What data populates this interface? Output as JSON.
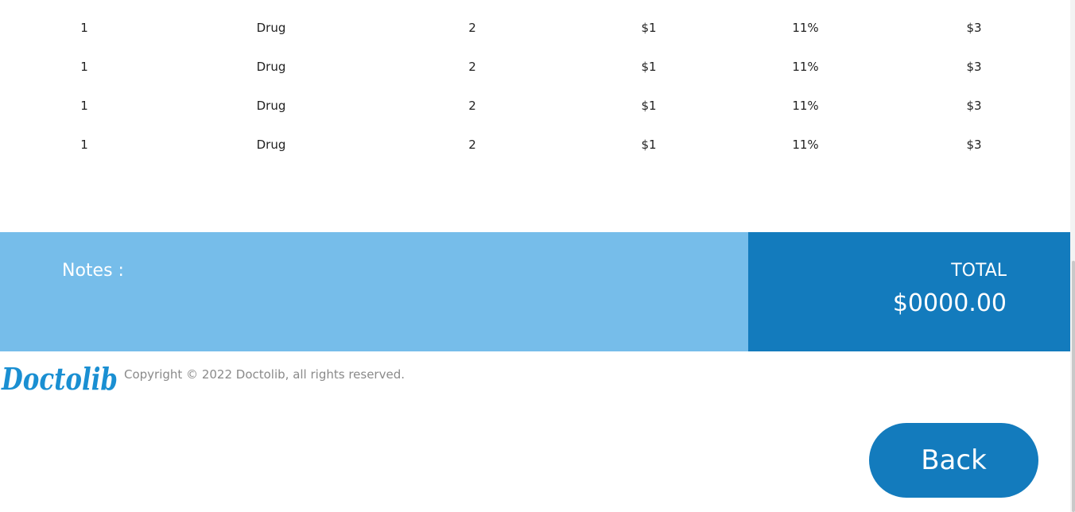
{
  "table": {
    "rows": [
      [
        "1",
        "Drug",
        "2",
        "$1",
        "11%",
        "$3"
      ],
      [
        "1",
        "Drug",
        "2",
        "$1",
        "11%",
        "$3"
      ],
      [
        "1",
        "Drug",
        "2",
        "$1",
        "11%",
        "$3"
      ],
      [
        "1",
        "Drug",
        "2",
        "$1",
        "11%",
        "$3"
      ]
    ]
  },
  "summary": {
    "notes_label": "Notes :",
    "total_label": "TOTAL",
    "total_value": "$0000.00"
  },
  "footer": {
    "logo_text": "Doctolib",
    "copyright": "Copyright © 2022 Doctolib, all rights reserved."
  },
  "actions": {
    "back_label": "Back"
  },
  "colors": {
    "notes_bg": "#76bdea",
    "total_bg": "#137bbd",
    "brand_blue": "#1a8fd2"
  }
}
